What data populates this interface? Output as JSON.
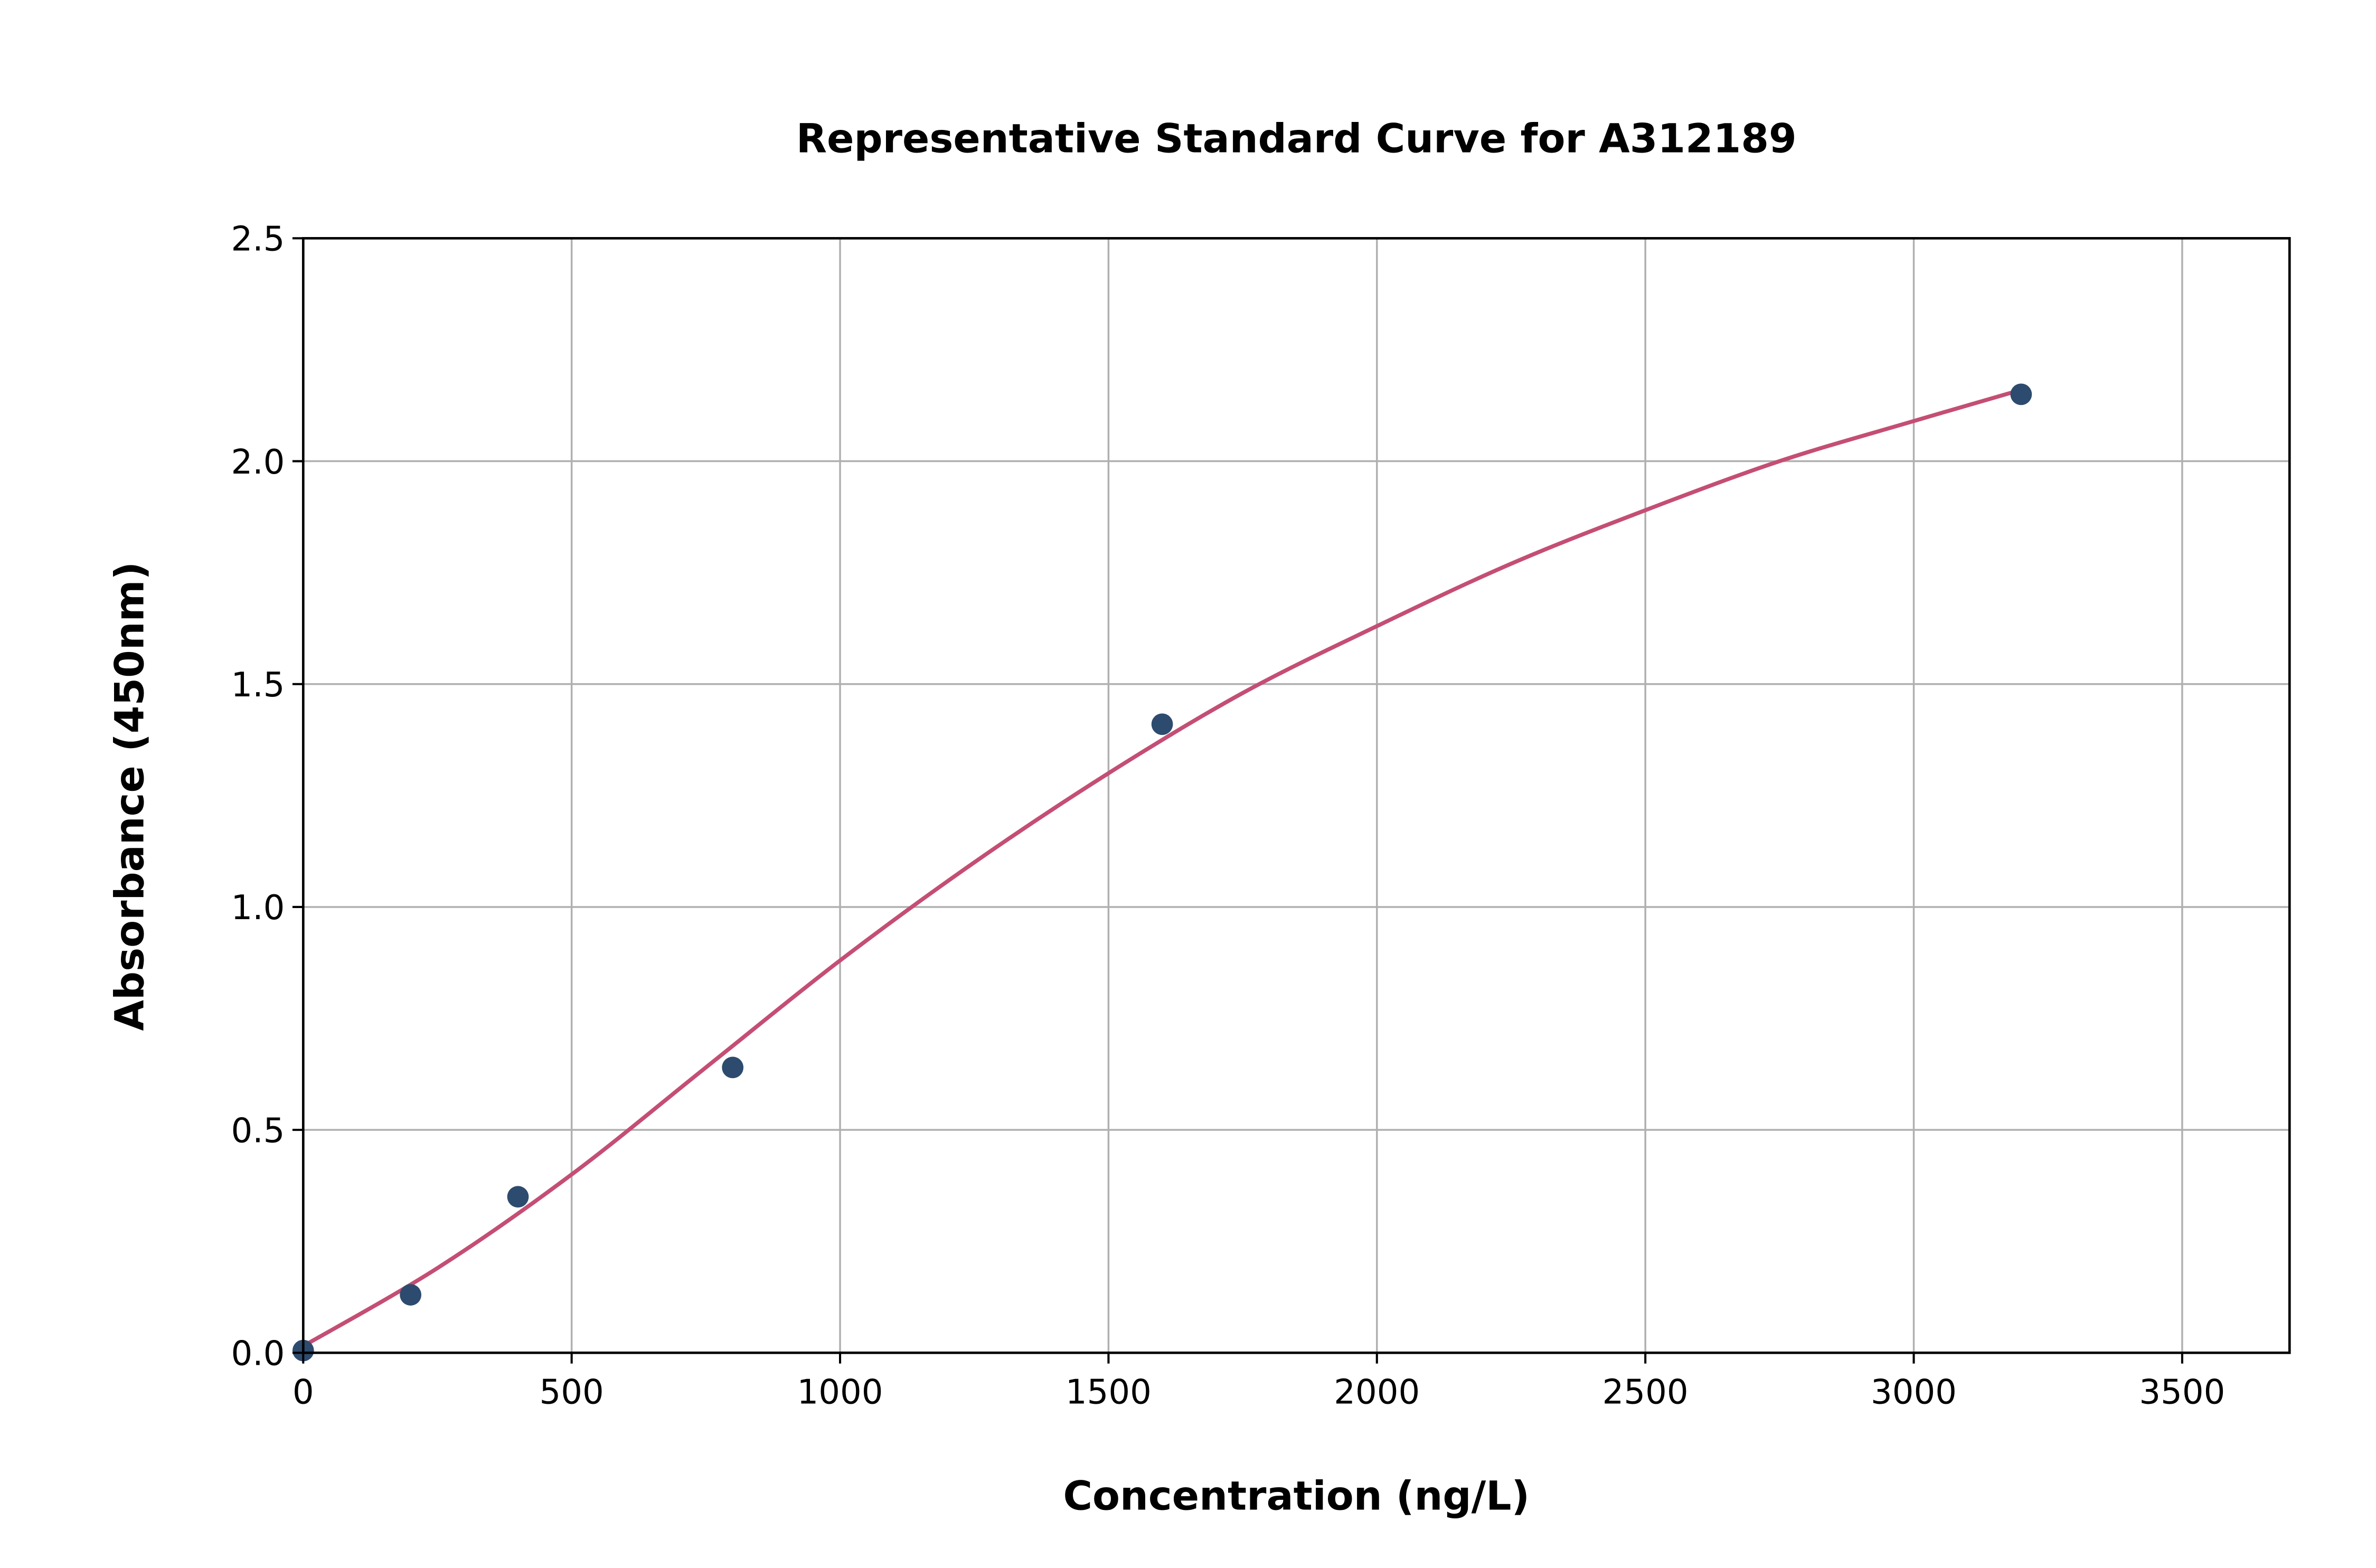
{
  "chart_data": {
    "type": "scatter",
    "title": "Representative Standard Curve for A312189",
    "xlabel": "Concentration (ng/L)",
    "ylabel": "Absorbance (450nm)",
    "xlim": [
      0,
      3700
    ],
    "ylim": [
      0,
      2.5
    ],
    "xticks": [
      "0",
      "500",
      "1000",
      "1500",
      "2000",
      "2500",
      "3000",
      "3500"
    ],
    "yticks": [
      "0.0",
      "0.5",
      "1.0",
      "1.5",
      "2.0",
      "2.5"
    ],
    "grid": true,
    "points": {
      "x": [
        0,
        200,
        400,
        800,
        1600,
        3200
      ],
      "y": [
        0.005,
        0.13,
        0.35,
        0.64,
        1.41,
        2.15
      ],
      "color": "#2d4b6e"
    },
    "fit_curve": {
      "x": [
        0,
        250,
        500,
        750,
        1000,
        1250,
        1500,
        1750,
        2000,
        2250,
        2500,
        2750,
        3000,
        3200
      ],
      "y": [
        0.015,
        0.19,
        0.4,
        0.64,
        0.88,
        1.1,
        1.3,
        1.48,
        1.63,
        1.77,
        1.89,
        2.0,
        2.09,
        2.16
      ],
      "color": "#c44e74"
    }
  }
}
